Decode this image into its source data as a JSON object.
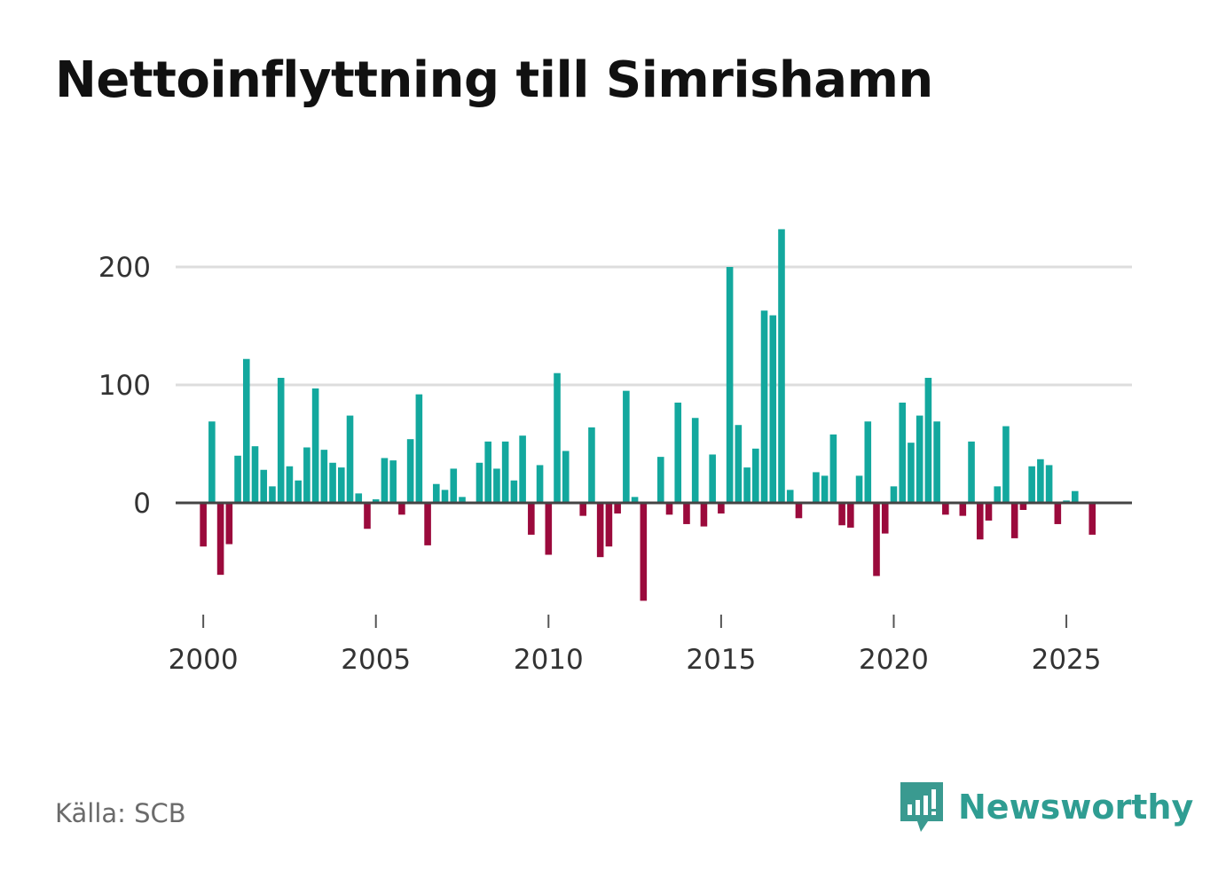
{
  "chart_data": {
    "type": "bar",
    "title": "Nettoinflyttning till Simrishamn",
    "xlabel": "",
    "ylabel": "",
    "x_ticks": [
      "2000",
      "2005",
      "2010",
      "2015",
      "2020",
      "2025"
    ],
    "y_ticks": [
      "0",
      "100",
      "200"
    ],
    "ylim": [
      -100,
      240
    ],
    "xlim": [
      1999.2,
      2026.9
    ],
    "grid": true,
    "positive_color": "#13a89e",
    "negative_color": "#9b0a3c",
    "zero_line_color": "#444444",
    "grid_color": "#dddddd",
    "x_start": 2000.0,
    "x_step": 0.25,
    "values": [
      -37,
      69,
      -61,
      -35,
      40,
      122,
      48,
      28,
      14,
      106,
      31,
      19,
      47,
      97,
      45,
      34,
      30,
      74,
      8,
      -22,
      3,
      38,
      36,
      -10,
      54,
      92,
      -36,
      16,
      11,
      29,
      5,
      0,
      34,
      52,
      29,
      52,
      19,
      57,
      -27,
      32,
      -44,
      110,
      44,
      0,
      -11,
      64,
      -46,
      -37,
      -9,
      95,
      5,
      -83,
      0,
      39,
      -10,
      85,
      -18,
      72,
      -20,
      41,
      -9,
      200,
      66,
      30,
      46,
      163,
      159,
      232,
      11,
      -13,
      0,
      26,
      23,
      58,
      -19,
      -21,
      23,
      69,
      -62,
      -26,
      14,
      85,
      51,
      74,
      106,
      69,
      -10,
      1,
      -11,
      52,
      -31,
      -15,
      14,
      65,
      -30,
      -6,
      31,
      37,
      32,
      -18,
      2,
      10,
      0,
      -27
    ]
  },
  "source": "Källa: SCB",
  "brand": {
    "name": "Newsworthy",
    "color": "#3a9a90"
  }
}
